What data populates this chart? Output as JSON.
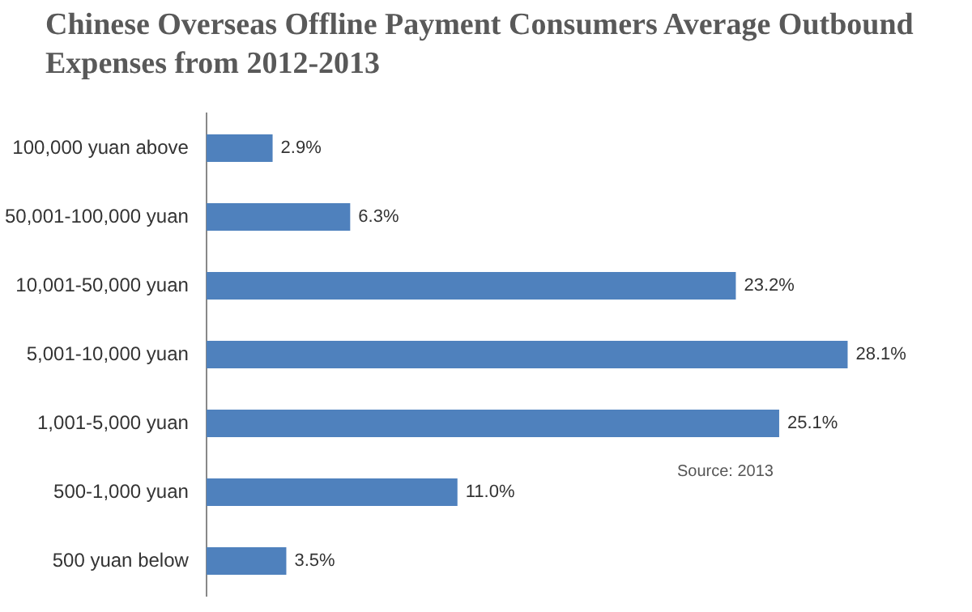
{
  "chart_data": {
    "type": "bar",
    "orientation": "horizontal",
    "title": "Chinese Overseas Offline Payment Consumers Average Outbound  Expenses from 2012-2013",
    "categories": [
      "100,000 yuan above",
      "50,001-100,000 yuan",
      "10,001-50,000 yuan",
      "5,001-10,000 yuan",
      "1,001-5,000 yuan",
      "500-1,000 yuan",
      "500 yuan below"
    ],
    "values": [
      2.9,
      6.3,
      23.2,
      28.1,
      25.1,
      11.0,
      3.5
    ],
    "value_labels": [
      "2.9%",
      "6.3%",
      "23.2%",
      "28.1%",
      "25.1%",
      "11.0%",
      "3.5%"
    ],
    "color": "#4f81bd",
    "annotations": [
      "Source: 2013"
    ]
  }
}
